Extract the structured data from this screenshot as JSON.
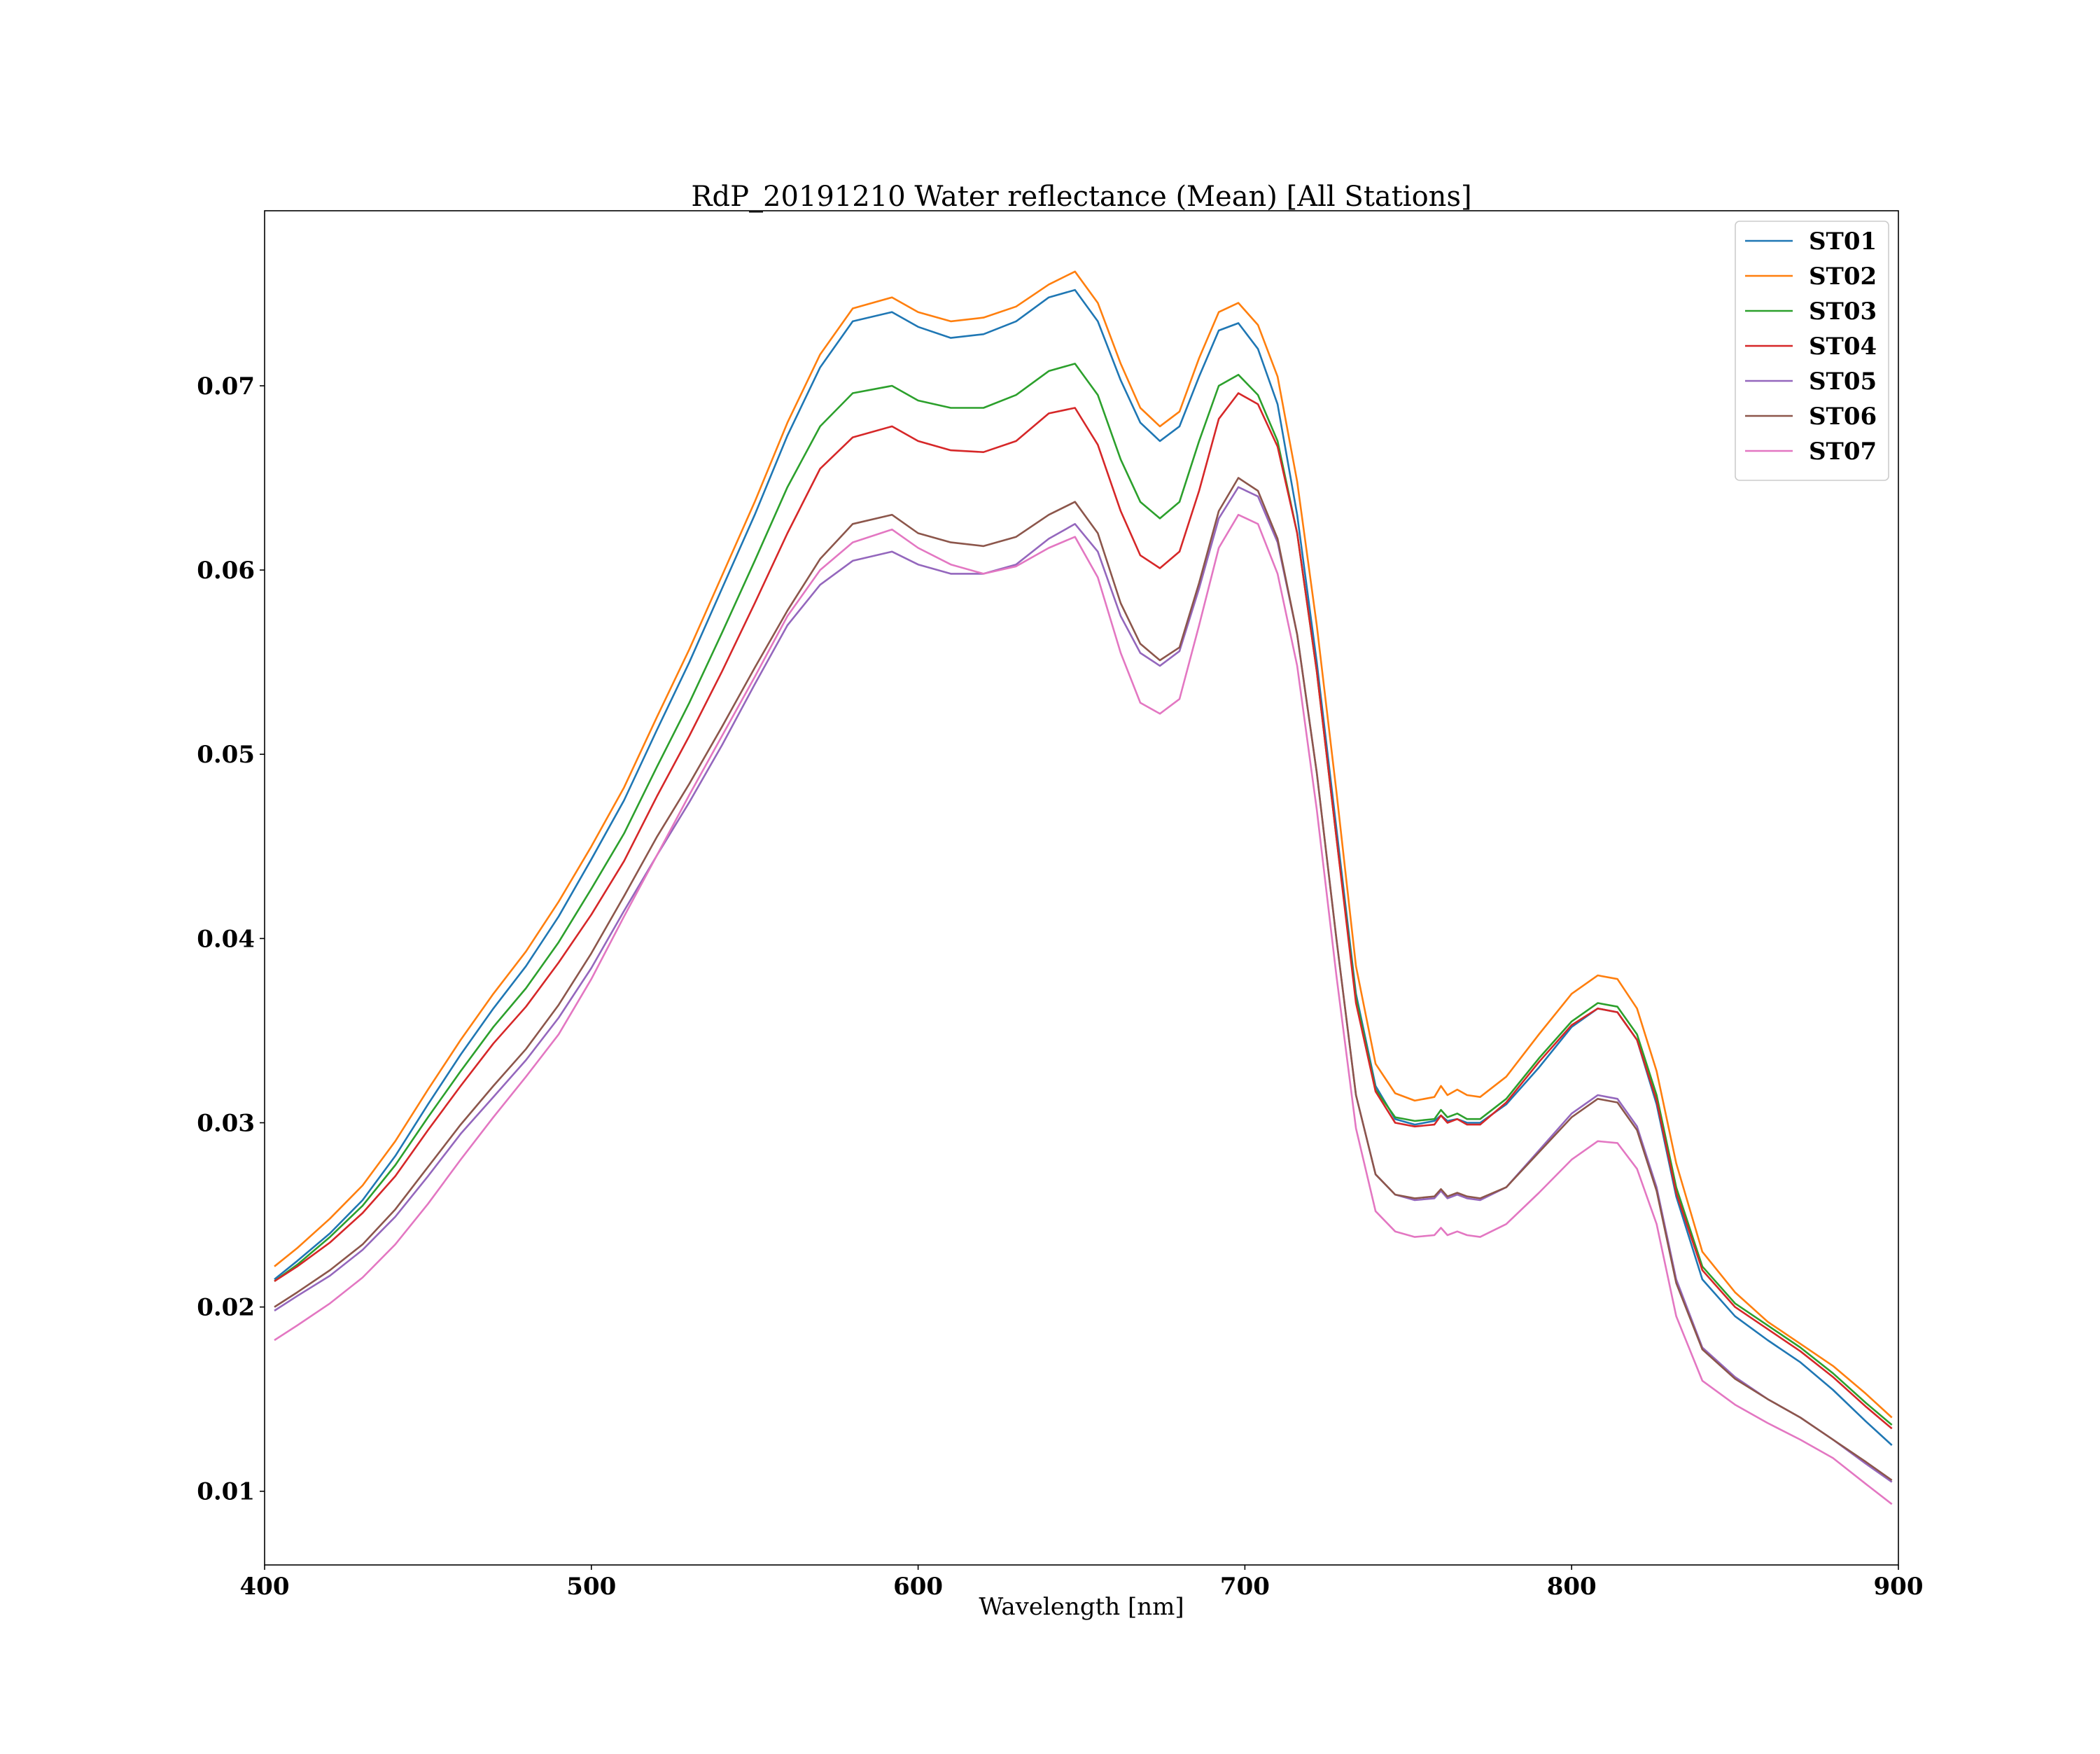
{
  "chart_data": {
    "type": "line",
    "title": "RdP_20191210 Water reflectance (Mean) [All Stations]",
    "xlabel": "Wavelength [nm]",
    "ylabel": "",
    "xlim": [
      400,
      900
    ],
    "ylim": [
      0.006,
      0.0795
    ],
    "xticks": [
      "400",
      "500",
      "600",
      "700",
      "800",
      "900"
    ],
    "yticks": [
      "0.01",
      "0.02",
      "0.03",
      "0.04",
      "0.05",
      "0.06",
      "0.07"
    ],
    "grid": false,
    "legend_position": "top-right",
    "x": [
      403,
      410,
      420,
      430,
      440,
      450,
      460,
      470,
      480,
      490,
      500,
      510,
      520,
      530,
      540,
      550,
      560,
      570,
      580,
      592,
      600,
      610,
      620,
      630,
      640,
      648,
      655,
      662,
      668,
      674,
      680,
      686,
      692,
      698,
      704,
      710,
      716,
      722,
      728,
      734,
      740,
      746,
      752,
      758,
      760,
      762,
      765,
      768,
      772,
      780,
      790,
      800,
      808,
      814,
      820,
      826,
      832,
      840,
      850,
      860,
      870,
      880,
      890,
      898
    ],
    "series": [
      {
        "name": "ST01",
        "color": "#1f77b4",
        "values": [
          0.0215,
          0.0225,
          0.024,
          0.0258,
          0.0282,
          0.031,
          0.0337,
          0.0362,
          0.0385,
          0.0412,
          0.0443,
          0.0475,
          0.0513,
          0.055,
          0.059,
          0.063,
          0.0673,
          0.071,
          0.0735,
          0.074,
          0.0732,
          0.0726,
          0.0728,
          0.0735,
          0.0748,
          0.0752,
          0.0735,
          0.0703,
          0.068,
          0.067,
          0.0678,
          0.0705,
          0.073,
          0.0734,
          0.072,
          0.069,
          0.063,
          0.055,
          0.046,
          0.037,
          0.032,
          0.0302,
          0.0299,
          0.0301,
          0.0304,
          0.0301,
          0.0302,
          0.03,
          0.03,
          0.031,
          0.033,
          0.0352,
          0.0362,
          0.036,
          0.0345,
          0.031,
          0.026,
          0.0215,
          0.0195,
          0.0182,
          0.017,
          0.0155,
          0.0138,
          0.0125
        ]
      },
      {
        "name": "ST02",
        "color": "#ff7f0e",
        "values": [
          0.0222,
          0.0232,
          0.0248,
          0.0266,
          0.029,
          0.0318,
          0.0345,
          0.037,
          0.0393,
          0.042,
          0.045,
          0.0482,
          0.052,
          0.0557,
          0.0597,
          0.0637,
          0.068,
          0.0717,
          0.0742,
          0.0748,
          0.074,
          0.0735,
          0.0737,
          0.0743,
          0.0755,
          0.0762,
          0.0745,
          0.0712,
          0.0688,
          0.0678,
          0.0686,
          0.0715,
          0.074,
          0.0745,
          0.0733,
          0.0705,
          0.0648,
          0.057,
          0.048,
          0.0385,
          0.0332,
          0.0316,
          0.0312,
          0.0314,
          0.032,
          0.0315,
          0.0318,
          0.0315,
          0.0314,
          0.0325,
          0.0348,
          0.037,
          0.038,
          0.0378,
          0.0362,
          0.0328,
          0.0278,
          0.023,
          0.0208,
          0.0192,
          0.018,
          0.0168,
          0.0153,
          0.014
        ]
      },
      {
        "name": "ST03",
        "color": "#2ca02c",
        "values": [
          0.0214,
          0.0223,
          0.0238,
          0.0255,
          0.0277,
          0.0303,
          0.0328,
          0.0352,
          0.0373,
          0.0398,
          0.0427,
          0.0457,
          0.0493,
          0.0528,
          0.0566,
          0.0605,
          0.0645,
          0.0678,
          0.0696,
          0.07,
          0.0692,
          0.0688,
          0.0688,
          0.0695,
          0.0708,
          0.0712,
          0.0695,
          0.066,
          0.0637,
          0.0628,
          0.0637,
          0.067,
          0.07,
          0.0706,
          0.0695,
          0.067,
          0.062,
          0.0545,
          0.0455,
          0.0368,
          0.0318,
          0.0303,
          0.0301,
          0.0302,
          0.0307,
          0.0303,
          0.0305,
          0.0302,
          0.0302,
          0.0313,
          0.0335,
          0.0355,
          0.0365,
          0.0363,
          0.0348,
          0.0315,
          0.0265,
          0.0222,
          0.0202,
          0.019,
          0.0178,
          0.0164,
          0.0148,
          0.0136
        ]
      },
      {
        "name": "ST04",
        "color": "#d62728",
        "values": [
          0.0214,
          0.0222,
          0.0235,
          0.0251,
          0.0271,
          0.0296,
          0.032,
          0.0343,
          0.0363,
          0.0387,
          0.0413,
          0.0442,
          0.0477,
          0.051,
          0.0545,
          0.0582,
          0.062,
          0.0655,
          0.0672,
          0.0678,
          0.067,
          0.0665,
          0.0664,
          0.067,
          0.0685,
          0.0688,
          0.0668,
          0.0632,
          0.0608,
          0.0601,
          0.061,
          0.0643,
          0.0682,
          0.0696,
          0.069,
          0.0667,
          0.062,
          0.0545,
          0.0455,
          0.0365,
          0.0317,
          0.03,
          0.0298,
          0.0299,
          0.0304,
          0.03,
          0.0302,
          0.0299,
          0.0299,
          0.0311,
          0.0333,
          0.0353,
          0.0362,
          0.036,
          0.0345,
          0.0312,
          0.0262,
          0.022,
          0.02,
          0.0188,
          0.0176,
          0.0162,
          0.0146,
          0.0134
        ]
      },
      {
        "name": "ST05",
        "color": "#9467bd",
        "values": [
          0.0198,
          0.0206,
          0.0217,
          0.0231,
          0.0249,
          0.0271,
          0.0294,
          0.0314,
          0.0334,
          0.0357,
          0.0384,
          0.0415,
          0.0445,
          0.0474,
          0.0505,
          0.0538,
          0.057,
          0.0592,
          0.0605,
          0.061,
          0.0603,
          0.0598,
          0.0598,
          0.0603,
          0.0617,
          0.0625,
          0.061,
          0.0575,
          0.0555,
          0.0548,
          0.0556,
          0.059,
          0.0628,
          0.0645,
          0.064,
          0.0615,
          0.0565,
          0.049,
          0.04,
          0.0315,
          0.0272,
          0.0261,
          0.0258,
          0.0259,
          0.0263,
          0.0259,
          0.0261,
          0.0259,
          0.0258,
          0.0265,
          0.0285,
          0.0305,
          0.0315,
          0.0313,
          0.0298,
          0.0265,
          0.0215,
          0.0178,
          0.0162,
          0.015,
          0.014,
          0.0128,
          0.0115,
          0.0105
        ]
      },
      {
        "name": "ST06",
        "color": "#8c564b",
        "values": [
          0.02,
          0.0208,
          0.022,
          0.0234,
          0.0253,
          0.0276,
          0.0299,
          0.032,
          0.034,
          0.0364,
          0.0392,
          0.0423,
          0.0455,
          0.0484,
          0.0515,
          0.0547,
          0.0578,
          0.0606,
          0.0625,
          0.063,
          0.062,
          0.0615,
          0.0613,
          0.0618,
          0.063,
          0.0637,
          0.062,
          0.0582,
          0.056,
          0.0551,
          0.0558,
          0.0593,
          0.0632,
          0.065,
          0.0643,
          0.0617,
          0.0565,
          0.049,
          0.04,
          0.0315,
          0.0272,
          0.0261,
          0.0259,
          0.026,
          0.0264,
          0.026,
          0.0262,
          0.026,
          0.0259,
          0.0265,
          0.0284,
          0.0303,
          0.0313,
          0.0311,
          0.0296,
          0.0263,
          0.0213,
          0.0177,
          0.0161,
          0.015,
          0.014,
          0.0128,
          0.0116,
          0.0106
        ]
      },
      {
        "name": "ST07",
        "color": "#e377c2",
        "values": [
          0.0182,
          0.019,
          0.0202,
          0.0216,
          0.0234,
          0.0256,
          0.028,
          0.0303,
          0.0325,
          0.0348,
          0.0378,
          0.0412,
          0.0445,
          0.0478,
          0.051,
          0.0542,
          0.0575,
          0.06,
          0.0615,
          0.0622,
          0.0612,
          0.0603,
          0.0598,
          0.0602,
          0.0612,
          0.0618,
          0.0596,
          0.0555,
          0.0528,
          0.0522,
          0.053,
          0.057,
          0.0612,
          0.063,
          0.0625,
          0.0598,
          0.0548,
          0.047,
          0.038,
          0.0297,
          0.0252,
          0.0241,
          0.0238,
          0.0239,
          0.0243,
          0.0239,
          0.0241,
          0.0239,
          0.0238,
          0.0245,
          0.0262,
          0.028,
          0.029,
          0.0289,
          0.0275,
          0.0245,
          0.0195,
          0.016,
          0.0147,
          0.0137,
          0.0128,
          0.0118,
          0.0104,
          0.0093
        ]
      }
    ]
  }
}
